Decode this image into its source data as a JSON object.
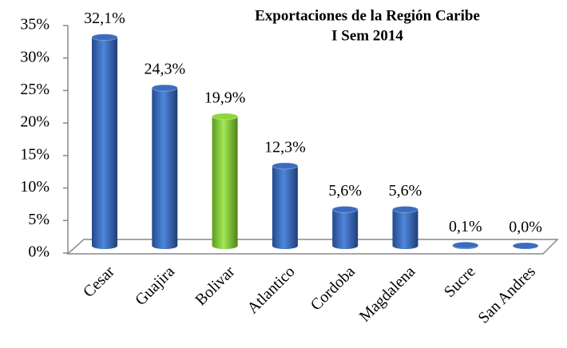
{
  "chart_data": {
    "type": "bar",
    "title": "Exportaciones de la Región Caribe",
    "subtitle": "I Sem 2014",
    "categories": [
      "Cesar",
      "Guajira",
      "Bolivar",
      "Atlantico",
      "Cordoba",
      "Magdalena",
      "Sucre",
      "San Andres"
    ],
    "values": [
      32.1,
      24.3,
      19.9,
      12.3,
      5.6,
      5.6,
      0.1,
      0.0
    ],
    "value_labels": [
      "32,1%",
      "24,3%",
      "19,9%",
      "12,3%",
      "5,6%",
      "5,6%",
      "0,1%",
      "0,0%"
    ],
    "colors": [
      "#3a6cc0",
      "#3a6cc0",
      "#8ed63c",
      "#3a6cc0",
      "#3a6cc0",
      "#3a6cc0",
      "#3a6cc0",
      "#3a6cc0"
    ],
    "ylim": [
      0,
      35
    ],
    "yticks": [
      {
        "value": 0,
        "label": "0%"
      },
      {
        "value": 5,
        "label": "5%"
      },
      {
        "value": 10,
        "label": "10%"
      },
      {
        "value": 15,
        "label": "15%"
      },
      {
        "value": 20,
        "label": "20%"
      },
      {
        "value": 25,
        "label": "25%"
      },
      {
        "value": 30,
        "label": "30%"
      },
      {
        "value": 35,
        "label": "35%"
      }
    ]
  }
}
